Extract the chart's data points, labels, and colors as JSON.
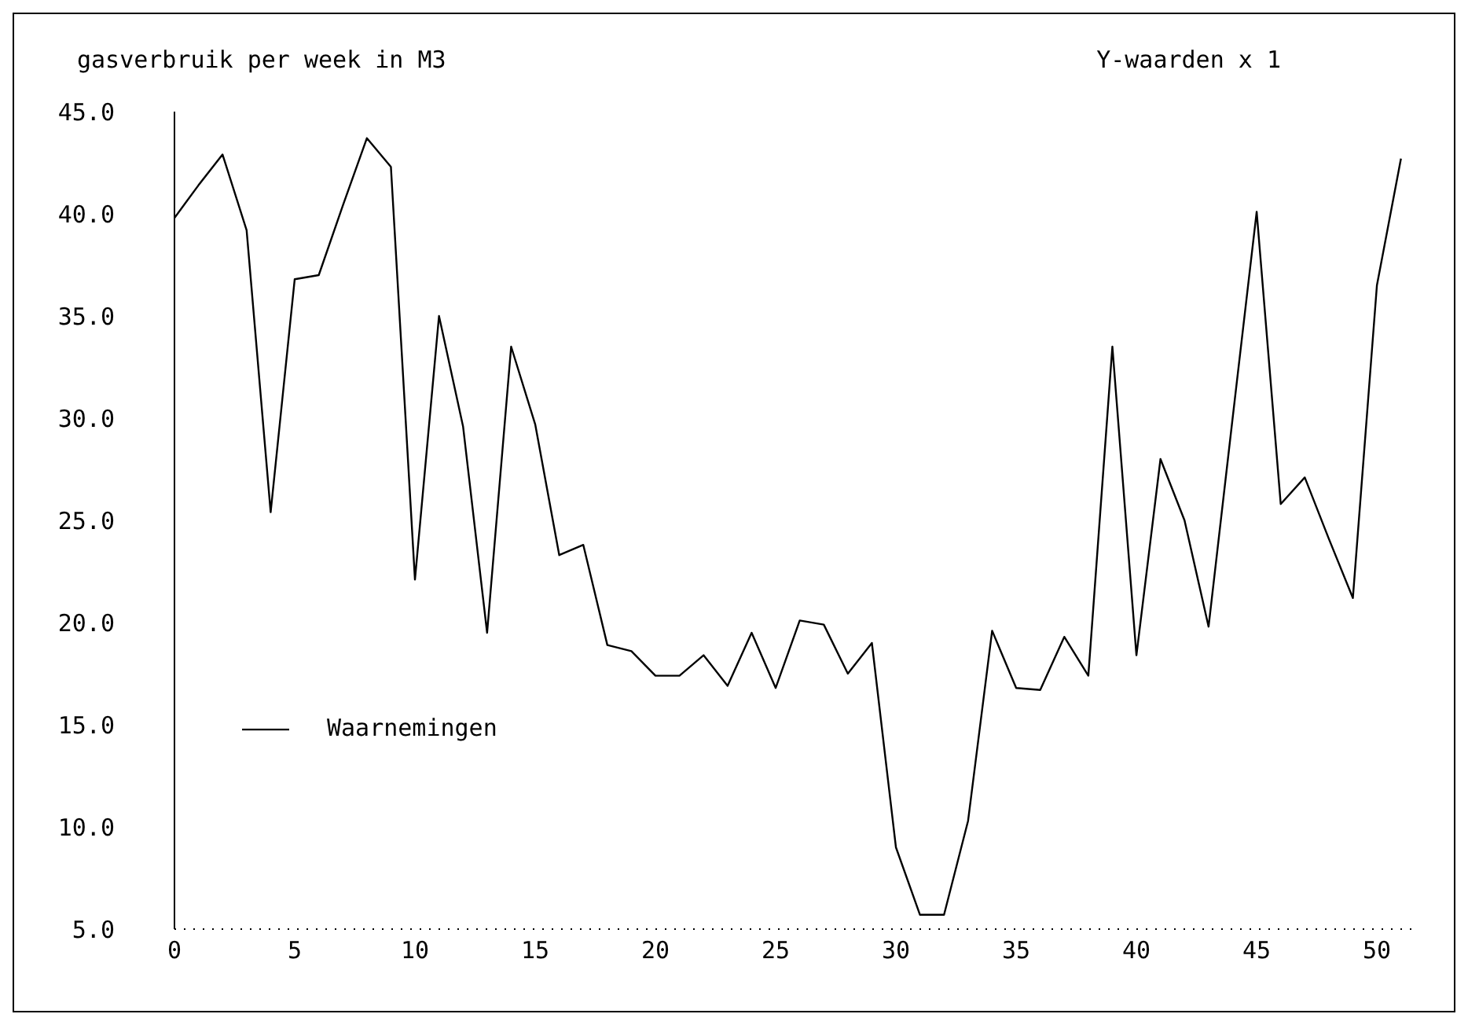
{
  "chart_data": {
    "type": "line",
    "title": "gasverbruik per week in M3",
    "annotations": [
      "Y-waarden x 1"
    ],
    "x": [
      0,
      1,
      2,
      3,
      4,
      5,
      6,
      7,
      8,
      9,
      10,
      11,
      12,
      13,
      14,
      15,
      16,
      17,
      18,
      19,
      20,
      21,
      22,
      23,
      24,
      25,
      26,
      27,
      28,
      29,
      30,
      31,
      32,
      33,
      34,
      35,
      36,
      37,
      38,
      39,
      40,
      41,
      42,
      43,
      44,
      45,
      46,
      47,
      48,
      49,
      50,
      51
    ],
    "series": [
      {
        "name": "Waarnemingen",
        "color": "#000000",
        "values": [
          39.8,
          41.4,
          42.9,
          39.2,
          25.4,
          36.8,
          37.0,
          40.4,
          43.7,
          42.3,
          22.1,
          35.0,
          29.6,
          19.5,
          33.5,
          29.7,
          23.3,
          23.8,
          18.9,
          18.6,
          17.4,
          17.4,
          18.4,
          16.9,
          19.5,
          16.8,
          20.1,
          19.9,
          17.5,
          19.0,
          9.0,
          5.7,
          5.7,
          10.3,
          19.6,
          16.8,
          16.7,
          19.3,
          17.4,
          33.5,
          18.4,
          28.0,
          25.0,
          19.8,
          30.0,
          40.1,
          25.8,
          27.1,
          24.1,
          21.2,
          36.5,
          42.7
        ]
      }
    ],
    "xlim": [
      0,
      51.5
    ],
    "ylim": [
      5,
      45
    ],
    "xticks": [
      0,
      5,
      10,
      15,
      20,
      25,
      30,
      35,
      40,
      45,
      50
    ],
    "yticks": [
      {
        "value": 5,
        "label": "5.0"
      },
      {
        "value": 10,
        "label": "10.0"
      },
      {
        "value": 15,
        "label": "15.0"
      },
      {
        "value": 20,
        "label": "20.0"
      },
      {
        "value": 25,
        "label": "25.0"
      },
      {
        "value": 30,
        "label": "30.0"
      },
      {
        "value": 35,
        "label": "35.0"
      },
      {
        "value": 40,
        "label": "40.0"
      },
      {
        "value": 45,
        "label": "45.0"
      }
    ],
    "legend": "left",
    "marker": "none",
    "line_style": "solid"
  }
}
